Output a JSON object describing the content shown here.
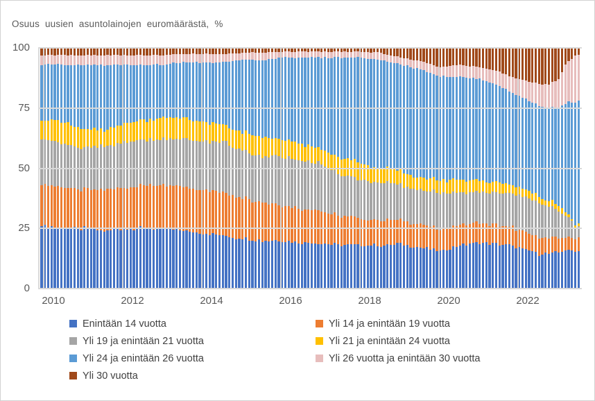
{
  "title": "Osuus uusien asuntolainojen euromäärästä, %",
  "y_axis": {
    "ticks": [
      "0",
      "25",
      "50",
      "75",
      "100"
    ],
    "values": [
      0,
      25,
      50,
      75,
      100
    ]
  },
  "x_axis": {
    "ticks": [
      "2010",
      "2012",
      "2014",
      "2016",
      "2018",
      "2020",
      "2022"
    ]
  },
  "legend": [
    {
      "label": "Enintään 14 vuotta",
      "color": "#4472C4"
    },
    {
      "label": "Yli 14 ja enintään 19 vuotta",
      "color": "#ED7D31"
    },
    {
      "label": "Yli 19 ja enintään 21 vuotta",
      "color": "#A5A5A5"
    },
    {
      "label": "Yli 21 ja enintään 24 vuotta",
      "color": "#FFC000"
    },
    {
      "label": "Yli 24 ja enintään 26 vuotta",
      "color": "#5B9BD5"
    },
    {
      "label": "Yli 26 vuotta ja enintään 30 vuotta",
      "color": "#E7BDBC"
    },
    {
      "label": "Yli 30 vuotta",
      "color": "#A0491A"
    }
  ],
  "chart_data": {
    "type": "bar",
    "subtype": "stacked-100-percent-columns",
    "title": "Osuus uusien asuntolainojen euromäärästä, %",
    "ylabel": "%",
    "ylim": [
      0,
      100
    ],
    "grid": true,
    "legend_position": "bottom",
    "frequency": "monthly",
    "x_range": [
      "2009-12",
      "2023-06"
    ],
    "n_points": 164,
    "note": "Shares (%) of new housing loans by maturity; anchors are [decimal_year, share_%], monthly bars are interpolated between anchors",
    "series": [
      {
        "name": "Enintään 14 vuotta",
        "color": "#4472C4",
        "anchors": [
          [
            2010,
            26
          ],
          [
            2010.5,
            25
          ],
          [
            2011,
            25
          ],
          [
            2011.5,
            24
          ],
          [
            2012,
            25
          ],
          [
            2012.5,
            25
          ],
          [
            2013,
            25
          ],
          [
            2013.5,
            24
          ],
          [
            2014,
            23
          ],
          [
            2014.5,
            22
          ],
          [
            2015,
            21
          ],
          [
            2015.5,
            20
          ],
          [
            2016,
            20
          ],
          [
            2016.5,
            19
          ],
          [
            2017,
            19
          ],
          [
            2017.5,
            18
          ],
          [
            2018,
            18
          ],
          [
            2018.5,
            18
          ],
          [
            2019,
            18.5
          ],
          [
            2019.5,
            17
          ],
          [
            2020,
            15.5
          ],
          [
            2020.5,
            18
          ],
          [
            2021,
            19
          ],
          [
            2021.5,
            18.5
          ],
          [
            2022,
            17
          ],
          [
            2022.5,
            14.5
          ],
          [
            2022.75,
            14.5
          ],
          [
            2023,
            15
          ],
          [
            2023.17,
            16
          ],
          [
            2023.42,
            15.5
          ]
        ]
      },
      {
        "name": "Yli 14 ja enintään 19 vuotta",
        "color": "#ED7D31",
        "anchors": [
          [
            2010,
            17
          ],
          [
            2010.5,
            17
          ],
          [
            2011,
            16
          ],
          [
            2011.5,
            17
          ],
          [
            2012,
            17
          ],
          [
            2012.5,
            18
          ],
          [
            2013,
            18
          ],
          [
            2013.5,
            18
          ],
          [
            2014,
            18
          ],
          [
            2014.5,
            18
          ],
          [
            2015,
            17
          ],
          [
            2015.5,
            16
          ],
          [
            2016,
            15
          ],
          [
            2016.5,
            14
          ],
          [
            2017,
            13.5
          ],
          [
            2017.5,
            12
          ],
          [
            2018,
            11
          ],
          [
            2018.5,
            10.5
          ],
          [
            2019,
            10
          ],
          [
            2019.5,
            9.5
          ],
          [
            2020,
            9
          ],
          [
            2020.5,
            8.5
          ],
          [
            2021,
            8.5
          ],
          [
            2021.5,
            8
          ],
          [
            2022,
            7.5
          ],
          [
            2022.5,
            7
          ],
          [
            2022.75,
            6.5
          ],
          [
            2023,
            6
          ],
          [
            2023.17,
            5.5
          ],
          [
            2023.42,
            5.5
          ]
        ]
      },
      {
        "name": "Yli 19 ja enintään 21 vuotta",
        "color": "#A5A5A5",
        "anchors": [
          [
            2010,
            19
          ],
          [
            2010.5,
            18
          ],
          [
            2011,
            17
          ],
          [
            2011.5,
            18
          ],
          [
            2012,
            19
          ],
          [
            2012.5,
            19
          ],
          [
            2013,
            19
          ],
          [
            2013.5,
            20
          ],
          [
            2014,
            20
          ],
          [
            2014.5,
            21
          ],
          [
            2015,
            19.5
          ],
          [
            2015.5,
            19
          ],
          [
            2016,
            20
          ],
          [
            2016.5,
            20
          ],
          [
            2017,
            19.5
          ],
          [
            2017.5,
            17
          ],
          [
            2018,
            16
          ],
          [
            2018.5,
            15.5
          ],
          [
            2019,
            14.5
          ],
          [
            2019.5,
            14.5
          ],
          [
            2020,
            15
          ],
          [
            2020.5,
            13.5
          ],
          [
            2021,
            13
          ],
          [
            2021.5,
            13.5
          ],
          [
            2022,
            14.5
          ],
          [
            2022.5,
            14.5
          ],
          [
            2022.75,
            13
          ],
          [
            2023,
            11
          ],
          [
            2023.17,
            9
          ],
          [
            2023.42,
            5
          ]
        ]
      },
      {
        "name": "Yli 21 ja enintään 24 vuotta",
        "color": "#FFC000",
        "anchors": [
          [
            2010,
            8
          ],
          [
            2010.5,
            9
          ],
          [
            2011,
            8
          ],
          [
            2011.5,
            7
          ],
          [
            2012,
            8
          ],
          [
            2012.5,
            8
          ],
          [
            2013,
            9
          ],
          [
            2013.5,
            9
          ],
          [
            2014,
            8
          ],
          [
            2014.5,
            7
          ],
          [
            2015,
            7.5
          ],
          [
            2015.5,
            8
          ],
          [
            2016,
            7
          ],
          [
            2016.5,
            7
          ],
          [
            2017,
            6
          ],
          [
            2017.5,
            7
          ],
          [
            2018,
            7
          ],
          [
            2018.5,
            6
          ],
          [
            2019,
            6
          ],
          [
            2019.5,
            5
          ],
          [
            2020,
            5.5
          ],
          [
            2020.5,
            5
          ],
          [
            2021,
            4.5
          ],
          [
            2021.5,
            4
          ],
          [
            2022,
            3
          ],
          [
            2022.5,
            2.5
          ],
          [
            2022.75,
            2.5
          ],
          [
            2023,
            2
          ],
          [
            2023.17,
            1.5
          ],
          [
            2023.42,
            1
          ]
        ]
      },
      {
        "name": "Yli 24 ja enintään 26 vuotta",
        "color": "#5B9BD5",
        "anchors": [
          [
            2010,
            23
          ],
          [
            2010.5,
            24
          ],
          [
            2011,
            27
          ],
          [
            2011.5,
            27
          ],
          [
            2012,
            24
          ],
          [
            2012.5,
            23
          ],
          [
            2013,
            22
          ],
          [
            2013.5,
            23
          ],
          [
            2014,
            25
          ],
          [
            2014.5,
            26
          ],
          [
            2015,
            30
          ],
          [
            2015.5,
            32
          ],
          [
            2016,
            34
          ],
          [
            2016.5,
            36
          ],
          [
            2017,
            38
          ],
          [
            2017.5,
            42
          ],
          [
            2018,
            44
          ],
          [
            2018.5,
            45
          ],
          [
            2019,
            44
          ],
          [
            2019.5,
            45
          ],
          [
            2020,
            43
          ],
          [
            2020.5,
            43
          ],
          [
            2021,
            42
          ],
          [
            2021.5,
            40
          ],
          [
            2022,
            38
          ],
          [
            2022.5,
            37.5
          ],
          [
            2022.75,
            38.5
          ],
          [
            2023,
            41
          ],
          [
            2023.17,
            45
          ],
          [
            2023.42,
            51
          ]
        ]
      },
      {
        "name": "Yli 26 vuotta ja enintään 30 vuotta",
        "color": "#E7BDBC",
        "anchors": [
          [
            2010,
            4
          ],
          [
            2010.5,
            4
          ],
          [
            2011,
            4
          ],
          [
            2011.5,
            4
          ],
          [
            2012,
            4
          ],
          [
            2012.5,
            4
          ],
          [
            2013,
            4
          ],
          [
            2013.5,
            3.5
          ],
          [
            2014,
            3.5
          ],
          [
            2014.5,
            3.5
          ],
          [
            2015,
            3
          ],
          [
            2015.5,
            3
          ],
          [
            2016,
            2.5
          ],
          [
            2016.5,
            2.5
          ],
          [
            2017,
            2.5
          ],
          [
            2017.5,
            2.5
          ],
          [
            2018,
            2.5
          ],
          [
            2018.5,
            3
          ],
          [
            2019,
            3
          ],
          [
            2019.5,
            3.5
          ],
          [
            2020,
            4
          ],
          [
            2020.5,
            5
          ],
          [
            2021,
            5
          ],
          [
            2021.5,
            6
          ],
          [
            2022,
            7
          ],
          [
            2022.5,
            9
          ],
          [
            2022.75,
            10
          ],
          [
            2023,
            12
          ],
          [
            2023.17,
            16
          ],
          [
            2023.42,
            19
          ]
        ]
      },
      {
        "name": "Yli 30 vuotta",
        "color": "#A0491A",
        "anchors": [
          [
            2010,
            3
          ],
          [
            2010.5,
            3
          ],
          [
            2011,
            3
          ],
          [
            2011.5,
            3
          ],
          [
            2012,
            3
          ],
          [
            2012.5,
            3
          ],
          [
            2013,
            3
          ],
          [
            2013.5,
            2.5
          ],
          [
            2014,
            2.5
          ],
          [
            2014.5,
            2.5
          ],
          [
            2015,
            2
          ],
          [
            2015.5,
            2
          ],
          [
            2016,
            1.5
          ],
          [
            2016.5,
            1.5
          ],
          [
            2017,
            1.5
          ],
          [
            2017.5,
            1.5
          ],
          [
            2018,
            1.5
          ],
          [
            2018.5,
            2
          ],
          [
            2019,
            4
          ],
          [
            2019.5,
            5.5
          ],
          [
            2020,
            8
          ],
          [
            2020.5,
            7
          ],
          [
            2021,
            8
          ],
          [
            2021.5,
            10
          ],
          [
            2022,
            13
          ],
          [
            2022.5,
            15
          ],
          [
            2022.75,
            15
          ],
          [
            2023,
            13
          ],
          [
            2023.17,
            7
          ],
          [
            2023.42,
            3
          ]
        ]
      }
    ]
  }
}
